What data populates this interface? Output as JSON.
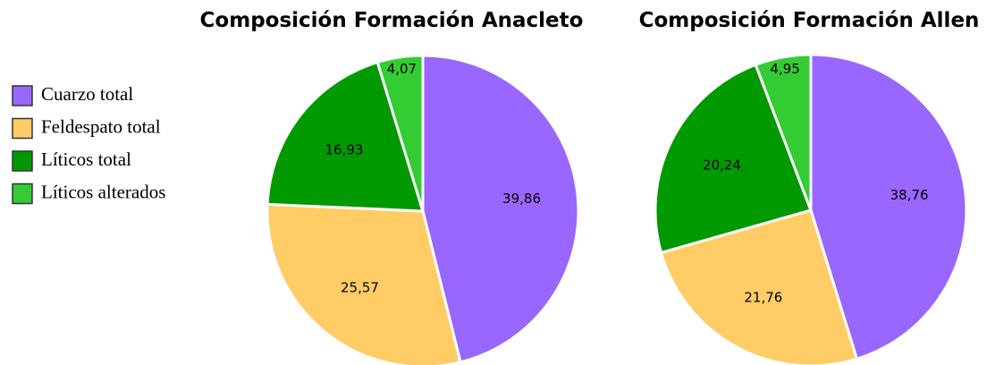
{
  "chart_data": [
    {
      "type": "pie",
      "title": "Composición Formación Anacleto",
      "categories": [
        "Cuarzo total",
        "Feldespato total",
        "Líticos total",
        "Líticos alterados"
      ],
      "values": [
        39.86,
        25.57,
        16.93,
        4.07
      ],
      "value_labels": [
        "39,86",
        "25,57",
        "16,93",
        "4,07"
      ],
      "colors": [
        "#9966ff",
        "#ffcc66",
        "#009900",
        "#33cc33"
      ],
      "legend": "left"
    },
    {
      "type": "pie",
      "title": "Composición Formación Allen",
      "categories": [
        "Cuarzo total",
        "Feldespato total",
        "Líticos total",
        "Líticos alterados"
      ],
      "values": [
        38.76,
        21.76,
        20.24,
        4.95
      ],
      "value_labels": [
        "38,76",
        "21,76",
        "20,24",
        "4,95"
      ],
      "colors": [
        "#9966ff",
        "#ffcc66",
        "#009900",
        "#33cc33"
      ]
    }
  ]
}
